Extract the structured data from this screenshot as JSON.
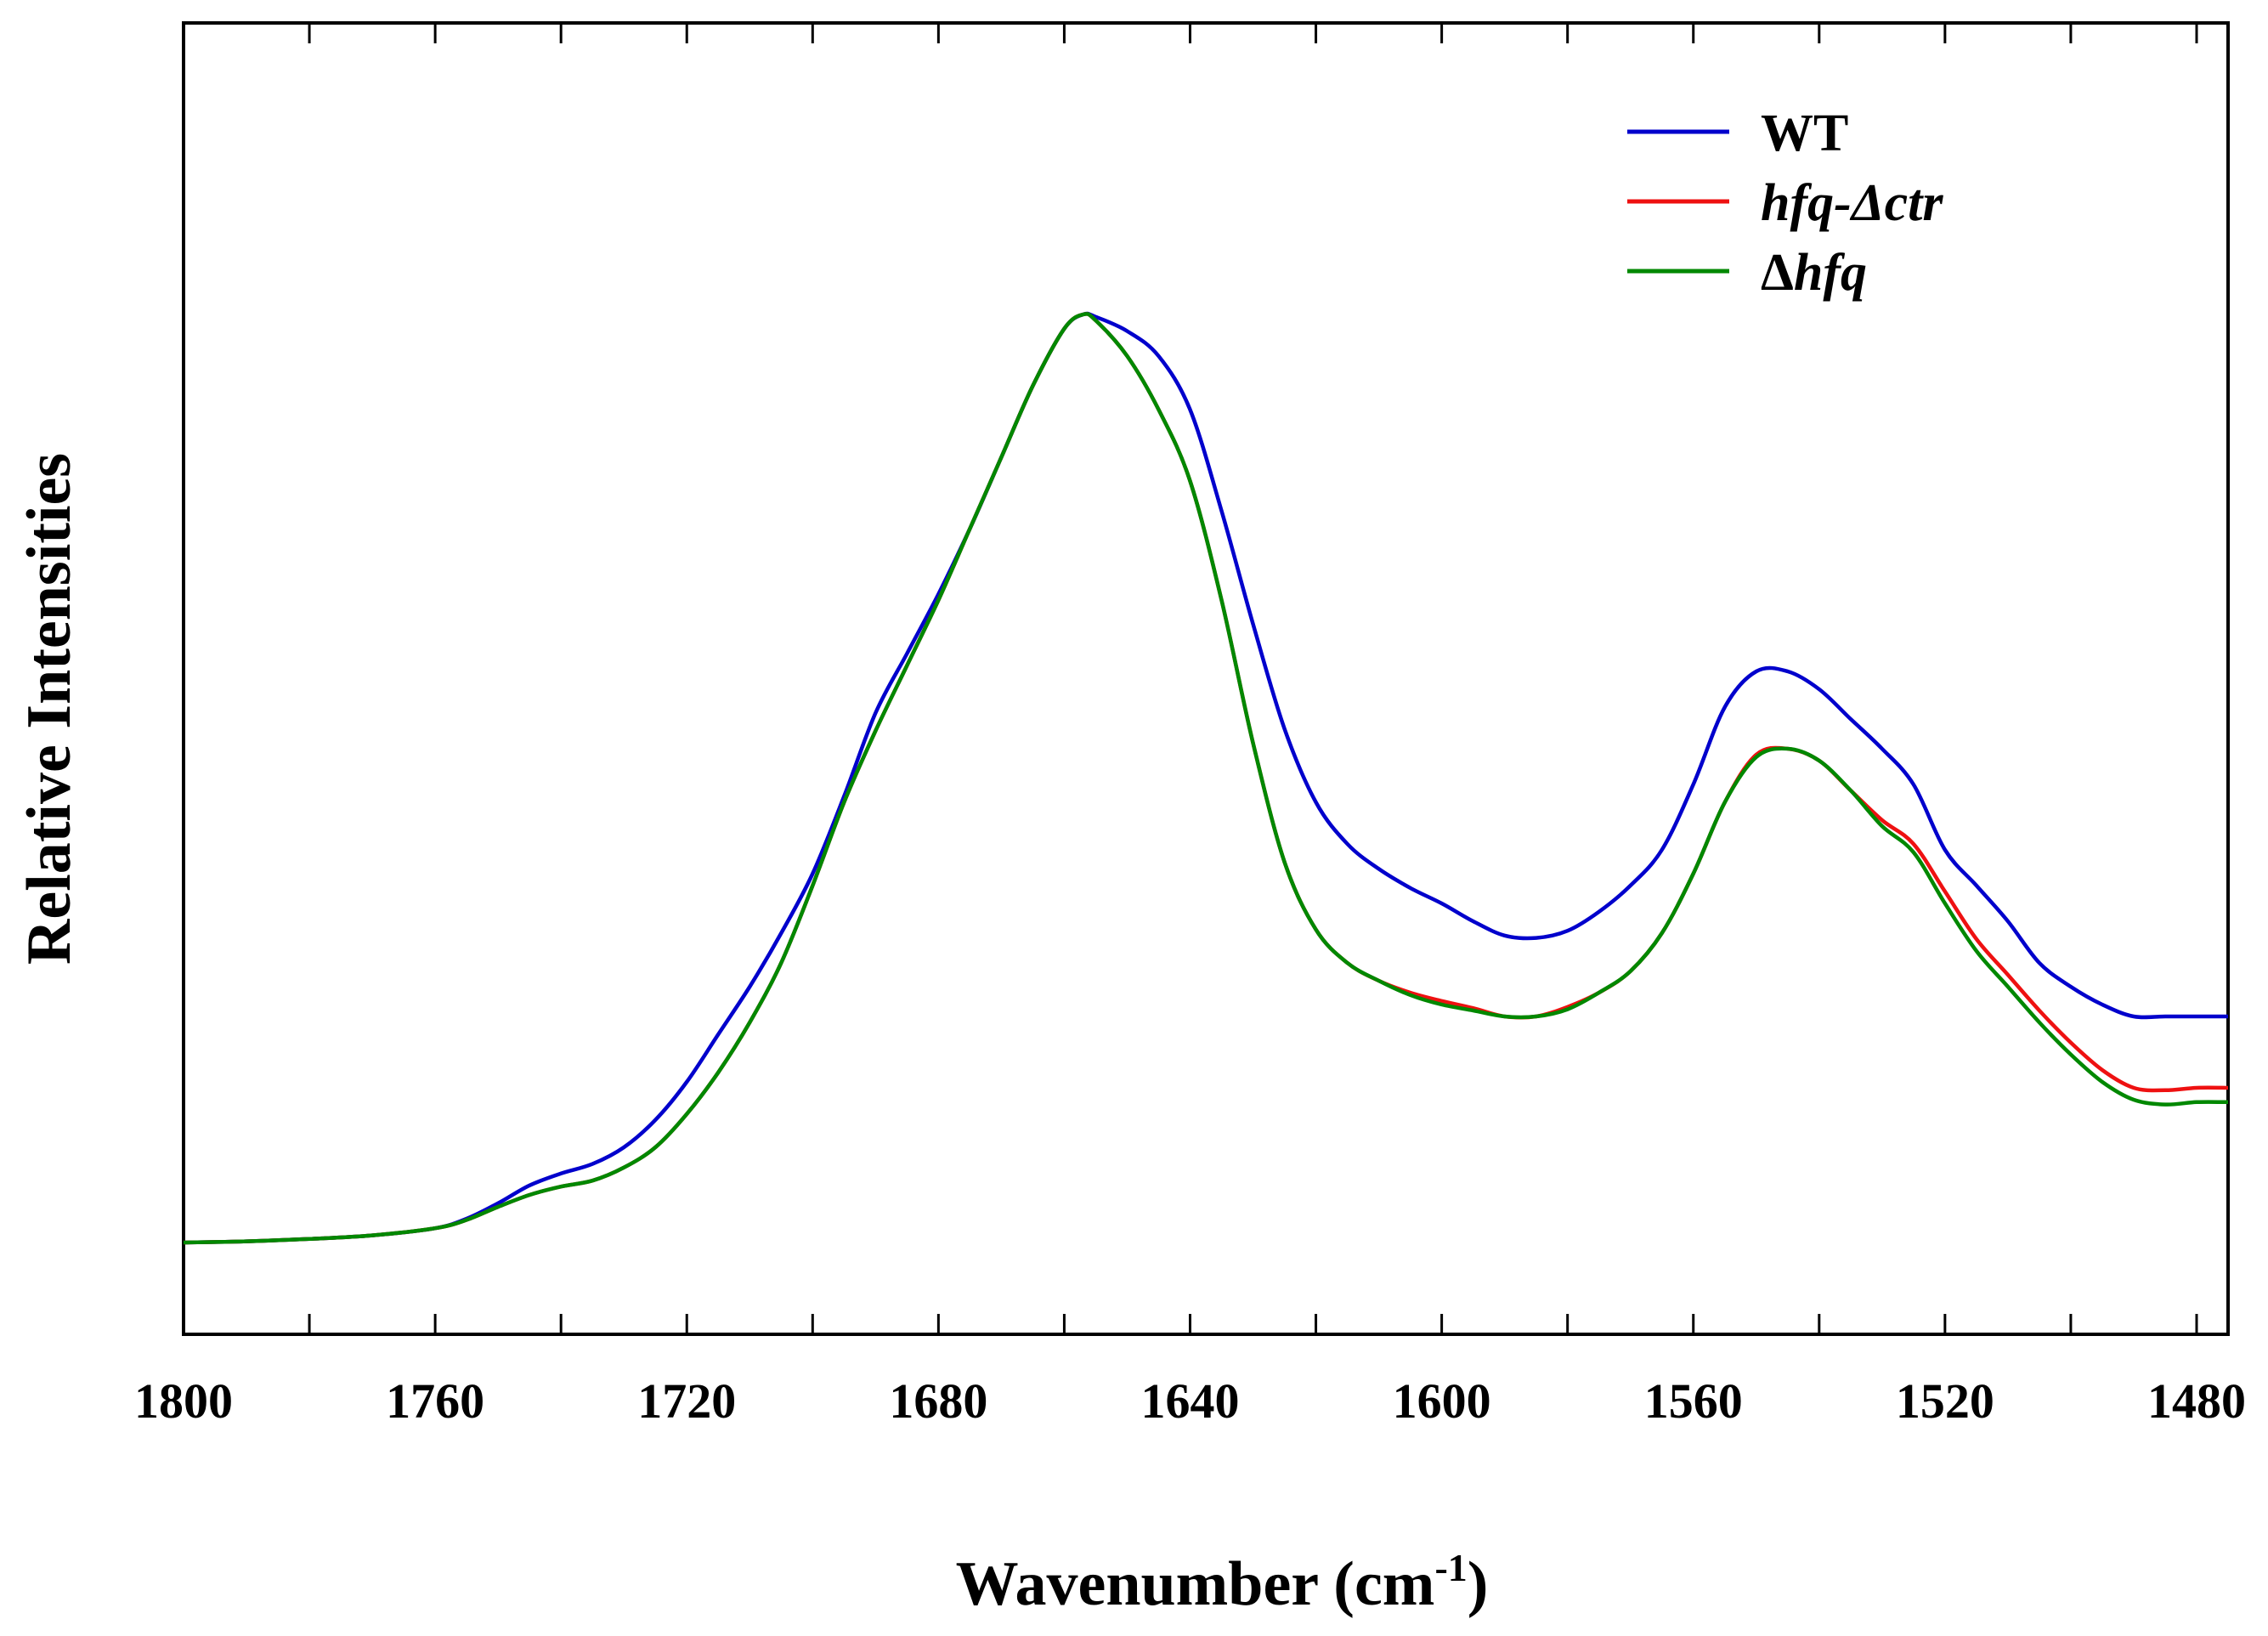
{
  "chart_data": {
    "type": "line",
    "title": "",
    "xlabel": "Wavenumber (cm",
    "xlabel_superscript": "-1",
    "xlabel_suffix": ")",
    "ylabel": "Relative Intensities",
    "xlim": [
      1800,
      1475
    ],
    "ylim": [
      -0.07,
      1.0
    ],
    "x_ticks": [
      1800,
      1760,
      1720,
      1680,
      1640,
      1600,
      1560,
      1520,
      1480
    ],
    "minor_x_ticks": [
      1780,
      1740,
      1700,
      1660,
      1620,
      1580,
      1540,
      1500
    ],
    "y_tick_labels": [],
    "grid": false,
    "legend_position": "top-right",
    "series": [
      {
        "name": "WT",
        "legend_parts": [
          {
            "text": "WT",
            "italic": false
          }
        ],
        "color": "#0000cc",
        "x": [
          1800,
          1790,
          1780,
          1770,
          1760,
          1755,
          1750,
          1745,
          1740,
          1735,
          1730,
          1725,
          1720,
          1715,
          1710,
          1705,
          1700,
          1695,
          1690,
          1685,
          1680,
          1675,
          1670,
          1665,
          1660,
          1657,
          1655,
          1650,
          1645,
          1640,
          1635,
          1630,
          1625,
          1620,
          1615,
          1610,
          1605,
          1600,
          1595,
          1590,
          1585,
          1580,
          1575,
          1570,
          1565,
          1560,
          1555,
          1550,
          1545,
          1540,
          1535,
          1530,
          1525,
          1520,
          1515,
          1510,
          1505,
          1500,
          1495,
          1490,
          1485,
          1480,
          1475
        ],
        "y": [
          0.0,
          0.001,
          0.003,
          0.006,
          0.012,
          0.02,
          0.033,
          0.048,
          0.058,
          0.066,
          0.08,
          0.103,
          0.135,
          0.175,
          0.215,
          0.26,
          0.31,
          0.375,
          0.445,
          0.495,
          0.545,
          0.6,
          0.66,
          0.72,
          0.768,
          0.78,
          0.778,
          0.766,
          0.745,
          0.7,
          0.615,
          0.52,
          0.432,
          0.37,
          0.335,
          0.314,
          0.298,
          0.285,
          0.27,
          0.258,
          0.256,
          0.262,
          0.278,
          0.3,
          0.33,
          0.385,
          0.45,
          0.48,
          0.48,
          0.465,
          0.44,
          0.415,
          0.385,
          0.33,
          0.3,
          0.27,
          0.235,
          0.215,
          0.2,
          0.19,
          0.19,
          0.19,
          0.19
        ]
      },
      {
        "name": "hfq-Δctr",
        "legend_parts": [
          {
            "text": "hfq-Δctr",
            "italic": true
          }
        ],
        "color": "#ee1111",
        "x": [
          1800,
          1790,
          1780,
          1770,
          1760,
          1755,
          1750,
          1745,
          1740,
          1735,
          1730,
          1725,
          1720,
          1715,
          1710,
          1705,
          1700,
          1695,
          1690,
          1685,
          1680,
          1675,
          1670,
          1665,
          1660,
          1657,
          1655,
          1650,
          1645,
          1640,
          1635,
          1630,
          1625,
          1620,
          1615,
          1610,
          1605,
          1600,
          1595,
          1590,
          1585,
          1580,
          1575,
          1570,
          1565,
          1560,
          1555,
          1550,
          1545,
          1540,
          1535,
          1530,
          1525,
          1520,
          1515,
          1510,
          1505,
          1500,
          1495,
          1490,
          1485,
          1480,
          1475
        ],
        "y": [
          0.0,
          0.001,
          0.003,
          0.006,
          0.012,
          0.019,
          0.03,
          0.04,
          0.047,
          0.052,
          0.063,
          0.08,
          0.108,
          0.143,
          0.185,
          0.235,
          0.3,
          0.37,
          0.43,
          0.485,
          0.54,
          0.6,
          0.66,
          0.72,
          0.768,
          0.78,
          0.775,
          0.745,
          0.7,
          0.64,
          0.54,
          0.42,
          0.32,
          0.263,
          0.235,
          0.22,
          0.21,
          0.203,
          0.197,
          0.19,
          0.19,
          0.198,
          0.21,
          0.228,
          0.26,
          0.31,
          0.37,
          0.41,
          0.415,
          0.405,
          0.38,
          0.355,
          0.335,
          0.295,
          0.255,
          0.225,
          0.195,
          0.168,
          0.145,
          0.13,
          0.128,
          0.13,
          0.13
        ]
      },
      {
        "name": "Δhfq",
        "legend_parts": [
          {
            "text": "Δ",
            "italic": false
          },
          {
            "text": "hfq",
            "italic": true
          }
        ],
        "color": "#008800",
        "x": [
          1800,
          1790,
          1780,
          1770,
          1760,
          1755,
          1750,
          1745,
          1740,
          1735,
          1730,
          1725,
          1720,
          1715,
          1710,
          1705,
          1700,
          1695,
          1690,
          1685,
          1680,
          1675,
          1670,
          1665,
          1660,
          1657,
          1655,
          1650,
          1645,
          1640,
          1635,
          1630,
          1625,
          1620,
          1615,
          1610,
          1605,
          1600,
          1595,
          1590,
          1585,
          1580,
          1575,
          1570,
          1565,
          1560,
          1555,
          1550,
          1545,
          1540,
          1535,
          1530,
          1525,
          1520,
          1515,
          1510,
          1505,
          1500,
          1495,
          1490,
          1485,
          1480,
          1475
        ],
        "y": [
          0.0,
          0.001,
          0.003,
          0.006,
          0.012,
          0.019,
          0.03,
          0.04,
          0.047,
          0.052,
          0.063,
          0.08,
          0.108,
          0.143,
          0.185,
          0.235,
          0.3,
          0.37,
          0.43,
          0.485,
          0.54,
          0.6,
          0.66,
          0.72,
          0.768,
          0.78,
          0.775,
          0.745,
          0.7,
          0.64,
          0.54,
          0.42,
          0.32,
          0.263,
          0.235,
          0.22,
          0.208,
          0.2,
          0.195,
          0.19,
          0.19,
          0.196,
          0.21,
          0.228,
          0.26,
          0.31,
          0.37,
          0.408,
          0.415,
          0.405,
          0.38,
          0.35,
          0.328,
          0.285,
          0.245,
          0.215,
          0.185,
          0.158,
          0.135,
          0.12,
          0.116,
          0.118,
          0.118
        ]
      }
    ]
  }
}
